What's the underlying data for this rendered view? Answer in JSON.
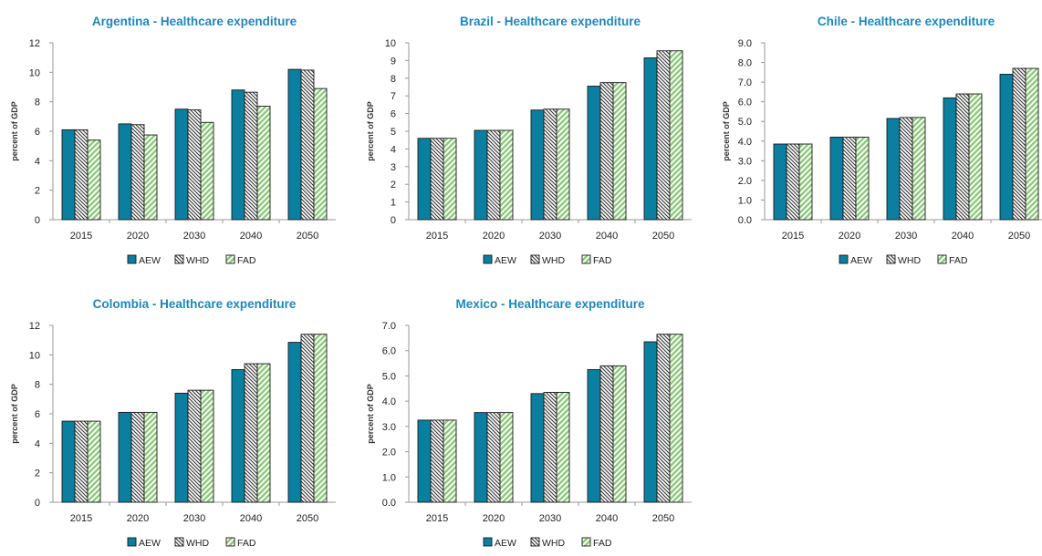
{
  "colors": {
    "AEW": "#0b7fa0",
    "WHD_fill": "#ffffff",
    "WHD_hatch": "#333333",
    "FAD": "#8fc97e",
    "title": "#1f87b8"
  },
  "chart_data": [
    {
      "type": "bar",
      "title": "Argentina - Healthcare expenditure",
      "ylabel": "percent of GDP",
      "categories": [
        "2015",
        "2020",
        "2030",
        "2040",
        "2050"
      ],
      "ylim": [
        0,
        12
      ],
      "yticks": [
        "0",
        "2",
        "4",
        "6",
        "8",
        "10",
        "12"
      ],
      "legend": "bottom",
      "series": [
        {
          "name": "AEW",
          "values": [
            6.1,
            6.5,
            7.5,
            8.8,
            10.2
          ]
        },
        {
          "name": "WHD",
          "values": [
            6.1,
            6.45,
            7.45,
            8.65,
            10.15
          ]
        },
        {
          "name": "FAD",
          "values": [
            5.4,
            5.75,
            6.6,
            7.7,
            8.9
          ]
        }
      ]
    },
    {
      "type": "bar",
      "title": "Brazil - Healthcare expenditure",
      "ylabel": "percent of GDP",
      "categories": [
        "2015",
        "2020",
        "2030",
        "2040",
        "2050"
      ],
      "ylim": [
        0,
        10
      ],
      "yticks": [
        "0",
        "1",
        "2",
        "3",
        "4",
        "5",
        "6",
        "7",
        "8",
        "9",
        "10"
      ],
      "legend": "bottom",
      "series": [
        {
          "name": "AEW",
          "values": [
            4.6,
            5.05,
            6.2,
            7.55,
            9.15
          ]
        },
        {
          "name": "WHD",
          "values": [
            4.6,
            5.05,
            6.25,
            7.75,
            9.55
          ]
        },
        {
          "name": "FAD",
          "values": [
            4.6,
            5.05,
            6.25,
            7.75,
            9.55
          ]
        }
      ]
    },
    {
      "type": "bar",
      "title": "Chile - Healthcare expenditure",
      "ylabel": "percent of GDP",
      "categories": [
        "2015",
        "2020",
        "2030",
        "2040",
        "2050"
      ],
      "ylim": [
        0,
        9
      ],
      "yticks": [
        "0.0",
        "1.0",
        "2.0",
        "3.0",
        "4.0",
        "5.0",
        "6.0",
        "7.0",
        "8.0",
        "9.0"
      ],
      "legend": "bottom",
      "series": [
        {
          "name": "AEW",
          "values": [
            3.85,
            4.2,
            5.15,
            6.2,
            7.4
          ]
        },
        {
          "name": "WHD",
          "values": [
            3.85,
            4.2,
            5.2,
            6.4,
            7.7
          ]
        },
        {
          "name": "FAD",
          "values": [
            3.85,
            4.2,
            5.2,
            6.4,
            7.7
          ]
        }
      ]
    },
    {
      "type": "bar",
      "title": "Colombia - Healthcare expenditure",
      "ylabel": "percent of GDP",
      "categories": [
        "2015",
        "2020",
        "2030",
        "2040",
        "2050"
      ],
      "ylim": [
        0,
        12
      ],
      "yticks": [
        "0",
        "2",
        "4",
        "6",
        "8",
        "10",
        "12"
      ],
      "legend": "bottom",
      "series": [
        {
          "name": "AEW",
          "values": [
            5.5,
            6.1,
            7.4,
            9.0,
            10.85
          ]
        },
        {
          "name": "WHD",
          "values": [
            5.5,
            6.1,
            7.6,
            9.4,
            11.4
          ]
        },
        {
          "name": "FAD",
          "values": [
            5.5,
            6.1,
            7.6,
            9.4,
            11.4
          ]
        }
      ]
    },
    {
      "type": "bar",
      "title": "Mexico - Healthcare expenditure",
      "ylabel": "percent of GDP",
      "categories": [
        "2015",
        "2020",
        "2030",
        "2040",
        "2050"
      ],
      "ylim": [
        0,
        7
      ],
      "yticks": [
        "0.0",
        "1.0",
        "2.0",
        "3.0",
        "4.0",
        "5.0",
        "6.0",
        "7.0"
      ],
      "legend": "bottom",
      "series": [
        {
          "name": "AEW",
          "values": [
            3.25,
            3.55,
            4.3,
            5.25,
            6.35
          ]
        },
        {
          "name": "WHD",
          "values": [
            3.25,
            3.55,
            4.35,
            5.4,
            6.65
          ]
        },
        {
          "name": "FAD",
          "values": [
            3.25,
            3.55,
            4.35,
            5.4,
            6.65
          ]
        }
      ]
    }
  ]
}
